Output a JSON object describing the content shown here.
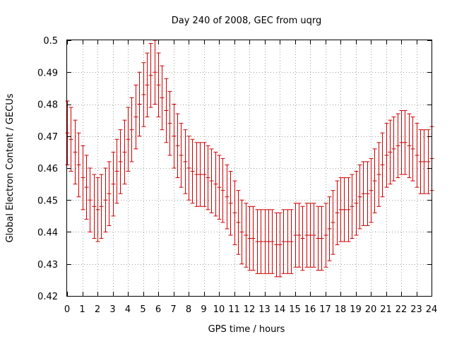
{
  "chart_data": {
    "type": "scatter",
    "title": "Day 240 of 2008, GEC from uqrg",
    "xlabel": "GPS time / hours",
    "ylabel": "Global Electron Content / GECUs",
    "xlim": [
      0,
      24
    ],
    "ylim": [
      0.42,
      0.5
    ],
    "xticks": [
      "0",
      "1",
      "2",
      "3",
      "4",
      "5",
      "6",
      "7",
      "8",
      "9",
      "10",
      "11",
      "12",
      "13",
      "14",
      "15",
      "16",
      "17",
      "18",
      "19",
      "20",
      "21",
      "22",
      "23",
      "24"
    ],
    "yticks": [
      "0.42",
      "0.43",
      "0.44",
      "0.45",
      "0.46",
      "0.47",
      "0.48",
      "0.49",
      "0.5"
    ],
    "grid": true,
    "error_bars": true,
    "error": 0.01,
    "series": [
      {
        "name": "GEC",
        "color": "#cc0000",
        "x": [
          0.0,
          0.25,
          0.5,
          0.75,
          1.0,
          1.25,
          1.5,
          1.75,
          2.0,
          2.25,
          2.5,
          2.75,
          3.0,
          3.25,
          3.5,
          3.75,
          4.0,
          4.25,
          4.5,
          4.75,
          5.0,
          5.25,
          5.5,
          5.75,
          6.0,
          6.25,
          6.5,
          6.75,
          7.0,
          7.25,
          7.5,
          7.75,
          8.0,
          8.25,
          8.5,
          8.75,
          9.0,
          9.25,
          9.5,
          9.75,
          10.0,
          10.25,
          10.5,
          10.75,
          11.0,
          11.25,
          11.5,
          11.75,
          12.0,
          12.25,
          12.5,
          12.75,
          13.0,
          13.25,
          13.5,
          13.75,
          14.0,
          14.25,
          14.5,
          14.75,
          15.0,
          15.25,
          15.5,
          15.75,
          16.0,
          16.25,
          16.5,
          16.75,
          17.0,
          17.25,
          17.5,
          17.75,
          18.0,
          18.25,
          18.5,
          18.75,
          19.0,
          19.25,
          19.5,
          19.75,
          20.0,
          20.25,
          20.5,
          20.75,
          21.0,
          21.25,
          21.5,
          21.75,
          22.0,
          22.25,
          22.5,
          22.75,
          23.0,
          23.25,
          23.5,
          23.75,
          24.0
        ],
        "y": [
          0.471,
          0.469,
          0.465,
          0.461,
          0.457,
          0.454,
          0.45,
          0.448,
          0.447,
          0.448,
          0.45,
          0.452,
          0.455,
          0.459,
          0.462,
          0.465,
          0.469,
          0.472,
          0.476,
          0.48,
          0.483,
          0.486,
          0.489,
          0.49,
          0.486,
          0.482,
          0.478,
          0.474,
          0.47,
          0.467,
          0.464,
          0.462,
          0.46,
          0.459,
          0.458,
          0.458,
          0.458,
          0.457,
          0.456,
          0.455,
          0.454,
          0.453,
          0.451,
          0.449,
          0.446,
          0.443,
          0.44,
          0.439,
          0.438,
          0.438,
          0.437,
          0.437,
          0.437,
          0.437,
          0.437,
          0.436,
          0.436,
          0.437,
          0.437,
          0.437,
          0.439,
          0.439,
          0.438,
          0.439,
          0.439,
          0.439,
          0.438,
          0.438,
          0.439,
          0.441,
          0.443,
          0.446,
          0.447,
          0.447,
          0.447,
          0.448,
          0.449,
          0.451,
          0.452,
          0.452,
          0.453,
          0.456,
          0.458,
          0.461,
          0.464,
          0.465,
          0.466,
          0.467,
          0.468,
          0.468,
          0.467,
          0.466,
          0.464,
          0.462,
          0.462,
          0.462,
          0.463
        ]
      }
    ]
  }
}
